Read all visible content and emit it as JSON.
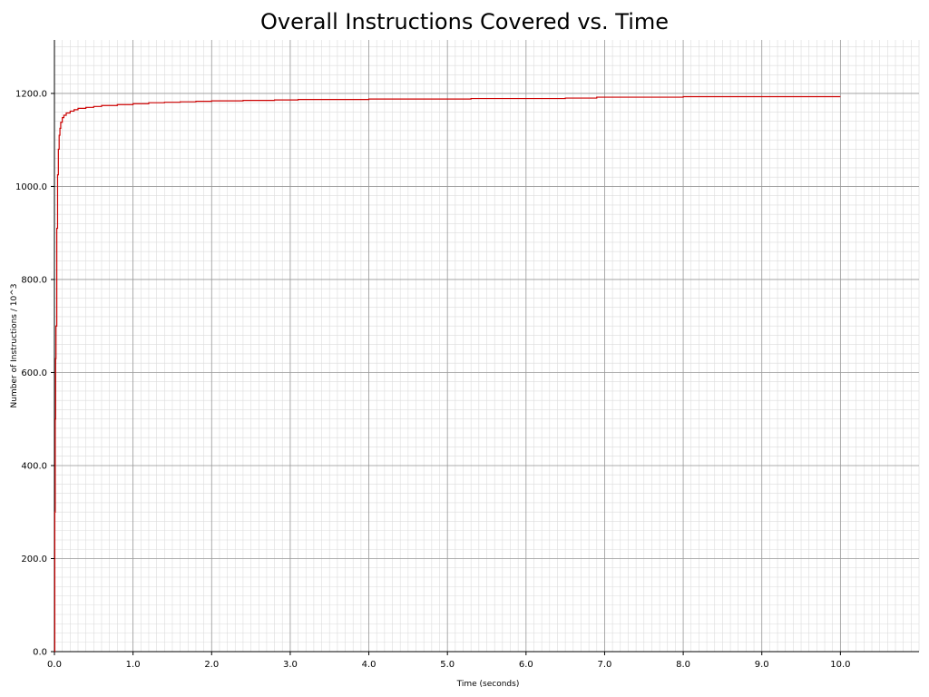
{
  "chart_data": {
    "type": "line",
    "title": "Overall Instructions Covered vs. Time",
    "xlabel": "Time (seconds)",
    "ylabel": "Number of Instructions / 10^3",
    "xlim": [
      0,
      11.0
    ],
    "ylim": [
      0,
      1315
    ],
    "x_ticks": [
      0,
      1,
      2,
      3,
      4,
      5,
      6,
      7,
      8,
      9,
      10
    ],
    "x_tick_labels": [
      "0.0",
      "1.0",
      "2.0",
      "3.0",
      "4.0",
      "5.0",
      "6.0",
      "7.0",
      "8.0",
      "9.0",
      "10.0"
    ],
    "y_ticks": [
      0,
      200,
      400,
      600,
      800,
      1000,
      1200
    ],
    "y_tick_labels": [
      "0.0",
      "200.0",
      "400.0",
      "600.0",
      "800.0",
      "1000.0",
      "1200.0"
    ],
    "grid": true,
    "minor_grid": true,
    "legend": "none",
    "line_color": "#cc0000",
    "series": [
      {
        "x": [
          0.0,
          0.005,
          0.01,
          0.015,
          0.02,
          0.03,
          0.04,
          0.05,
          0.06,
          0.07,
          0.08,
          0.1,
          0.12,
          0.15,
          0.2,
          0.25,
          0.3,
          0.4,
          0.5,
          0.6,
          0.8,
          1.0,
          1.2,
          1.4,
          1.6,
          1.8,
          2.0,
          2.4,
          2.8,
          3.1,
          3.5,
          4.0,
          4.5,
          5.0,
          5.3,
          6.0,
          6.5,
          6.9,
          7.5,
          8.0,
          9.0,
          10.0
        ],
        "y": [
          0,
          300,
          500,
          630,
          700,
          910,
          1025,
          1080,
          1110,
          1125,
          1138,
          1148,
          1153,
          1158,
          1162,
          1165,
          1168,
          1170,
          1172,
          1174,
          1176,
          1178,
          1180,
          1181,
          1182,
          1183,
          1184,
          1185,
          1186,
          1187,
          1187,
          1188,
          1188,
          1188,
          1189,
          1189,
          1190,
          1192,
          1192,
          1193,
          1193,
          1193
        ]
      }
    ]
  }
}
